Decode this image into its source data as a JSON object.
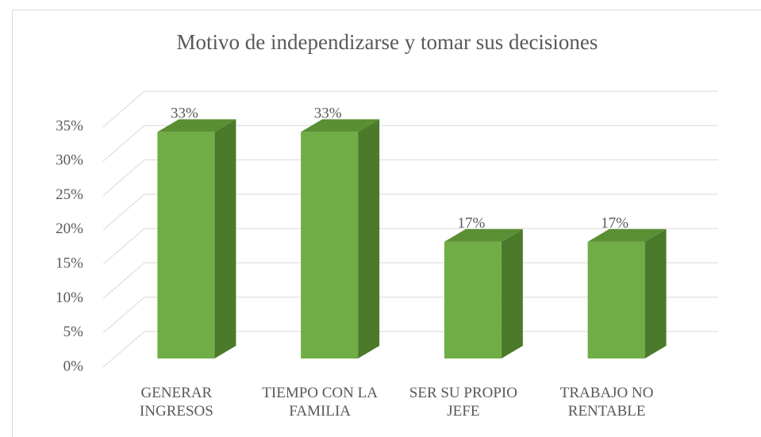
{
  "chart_data": {
    "type": "bar3d",
    "title": "Motivo de independizarse y tomar sus decisiones",
    "categories": [
      "GENERAR INGRESOS",
      "TIEMPO CON LA FAMILIA",
      "SER SU PROPIO JEFE",
      "TRABAJO NO RENTABLE"
    ],
    "values": [
      33,
      33,
      17,
      17
    ],
    "value_labels": [
      "33%",
      "33%",
      "17%",
      "17%"
    ],
    "color": "#70ad47",
    "ylim": [
      0,
      35
    ],
    "yticks": [
      {
        "value": 0,
        "label": "0%"
      },
      {
        "value": 5,
        "label": "5%"
      },
      {
        "value": 10,
        "label": "10%"
      },
      {
        "value": 15,
        "label": "15%"
      },
      {
        "value": 20,
        "label": "20%"
      },
      {
        "value": 25,
        "label": "25%"
      },
      {
        "value": 30,
        "label": "30%"
      },
      {
        "value": 35,
        "label": "35%"
      }
    ],
    "grid": true
  }
}
